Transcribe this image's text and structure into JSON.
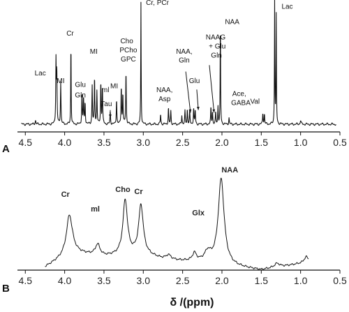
{
  "chart_data": [
    {
      "type": "line",
      "panel": "A",
      "xlabel": "",
      "xlim": [
        4.6,
        0.5
      ],
      "x_reversed": true,
      "xticks": [
        4.5,
        4.0,
        3.5,
        3.0,
        2.5,
        2.0,
        1.5,
        1.0,
        0.5
      ],
      "xtick_labels": [
        "4.5",
        "4.0",
        "3.5",
        "3.0",
        "2.5",
        "2.0",
        "1.5",
        "1.0",
        "0.5"
      ],
      "ylim": [
        0,
        1.0
      ],
      "grid": false,
      "series": [
        {
          "baseline": 0.06,
          "peaks": [
            {
              "ppm": 4.37,
              "height": 0.03,
              "width": 0.006
            },
            {
              "ppm": 4.11,
              "height": 0.49,
              "width": 0.004
            },
            {
              "ppm": 4.1,
              "height": 0.4,
              "width": 0.004
            },
            {
              "ppm": 4.05,
              "height": 0.33,
              "width": 0.004
            },
            {
              "ppm": 3.92,
              "height": 0.67,
              "width": 0.003
            },
            {
              "ppm": 3.78,
              "height": 0.24,
              "width": 0.004
            },
            {
              "ppm": 3.76,
              "height": 0.21,
              "width": 0.004
            },
            {
              "ppm": 3.74,
              "height": 0.17,
              "width": 0.004
            },
            {
              "ppm": 3.65,
              "height": 0.3,
              "width": 0.004
            },
            {
              "ppm": 3.62,
              "height": 0.37,
              "width": 0.004
            },
            {
              "ppm": 3.59,
              "height": 0.26,
              "width": 0.004
            },
            {
              "ppm": 3.54,
              "height": 0.33,
              "width": 0.004
            },
            {
              "ppm": 3.52,
              "height": 0.3,
              "width": 0.004
            },
            {
              "ppm": 3.42,
              "height": 0.1,
              "width": 0.004
            },
            {
              "ppm": 3.34,
              "height": 0.2,
              "width": 0.004
            },
            {
              "ppm": 3.28,
              "height": 0.3,
              "width": 0.004
            },
            {
              "ppm": 3.26,
              "height": 0.24,
              "width": 0.004
            },
            {
              "ppm": 3.22,
              "height": 0.42,
              "width": 0.004
            },
            {
              "ppm": 3.03,
              "height": 0.95,
              "width": 0.003
            },
            {
              "ppm": 2.78,
              "height": 0.08,
              "width": 0.004
            },
            {
              "ppm": 2.68,
              "height": 0.13,
              "width": 0.004
            },
            {
              "ppm": 2.65,
              "height": 0.1,
              "width": 0.004
            },
            {
              "ppm": 2.51,
              "height": 0.07,
              "width": 0.004
            },
            {
              "ppm": 2.47,
              "height": 0.1,
              "width": 0.004
            },
            {
              "ppm": 2.44,
              "height": 0.12,
              "width": 0.004
            },
            {
              "ppm": 2.41,
              "height": 0.1,
              "width": 0.004
            },
            {
              "ppm": 2.36,
              "height": 0.13,
              "width": 0.004
            },
            {
              "ppm": 2.34,
              "height": 0.11,
              "width": 0.004
            },
            {
              "ppm": 2.14,
              "height": 0.13,
              "width": 0.004
            },
            {
              "ppm": 2.12,
              "height": 0.1,
              "width": 0.004
            },
            {
              "ppm": 2.08,
              "height": 0.09,
              "width": 0.004
            },
            {
              "ppm": 2.05,
              "height": 0.14,
              "width": 0.004
            },
            {
              "ppm": 2.02,
              "height": 0.83,
              "width": 0.003
            },
            {
              "ppm": 1.91,
              "height": 0.05,
              "width": 0.004
            },
            {
              "ppm": 1.48,
              "height": 0.09,
              "width": 0.004
            },
            {
              "ppm": 1.46,
              "height": 0.08,
              "width": 0.004
            },
            {
              "ppm": 1.33,
              "height": 0.97,
              "width": 0.003
            },
            {
              "ppm": 1.31,
              "height": 0.84,
              "width": 0.003
            },
            {
              "ppm": 1.0,
              "height": 0.03,
              "width": 0.006
            }
          ]
        }
      ],
      "annotations": [
        {
          "text": "Cr, PCr",
          "ppm": 2.82,
          "y": 0.99
        },
        {
          "text": "Lac",
          "ppm": 1.17,
          "y": 0.96
        },
        {
          "text": "NAA",
          "ppm": 1.87,
          "y": 0.84
        },
        {
          "text": "Cr",
          "ppm": 3.93,
          "y": 0.75
        },
        {
          "text": "NAAG",
          "ppm": 2.08,
          "y": 0.72
        },
        {
          "text": "+ Glu",
          "ppm": 2.06,
          "y": 0.65
        },
        {
          "text": "Gln",
          "ppm": 2.07,
          "y": 0.58
        },
        {
          "text": "Cho",
          "ppm": 3.21,
          "y": 0.69
        },
        {
          "text": "PCho",
          "ppm": 3.19,
          "y": 0.62
        },
        {
          "text": "GPC",
          "ppm": 3.19,
          "y": 0.55
        },
        {
          "text": "MI",
          "ppm": 3.63,
          "y": 0.61
        },
        {
          "text": "Lac",
          "ppm": 4.31,
          "y": 0.44
        },
        {
          "text": "MI",
          "ppm": 4.05,
          "y": 0.38
        },
        {
          "text": "Glu",
          "ppm": 3.8,
          "y": 0.35
        },
        {
          "text": "Gln",
          "ppm": 3.8,
          "y": 0.27
        },
        {
          "text": "ml",
          "ppm": 3.48,
          "y": 0.31
        },
        {
          "text": "MI",
          "ppm": 3.37,
          "y": 0.34
        },
        {
          "text": "Tau",
          "ppm": 3.47,
          "y": 0.2
        },
        {
          "text": "NAA,",
          "ppm": 2.48,
          "y": 0.61
        },
        {
          "text": "Gln",
          "ppm": 2.48,
          "y": 0.54
        },
        {
          "text": "Glu",
          "ppm": 2.35,
          "y": 0.38
        },
        {
          "text": "NAA,",
          "ppm": 2.73,
          "y": 0.31
        },
        {
          "text": "Asp",
          "ppm": 2.73,
          "y": 0.24
        },
        {
          "text": "Ace,",
          "ppm": 1.78,
          "y": 0.28
        },
        {
          "text": "GABA",
          "ppm": 1.76,
          "y": 0.21
        },
        {
          "text": "Val",
          "ppm": 1.58,
          "y": 0.22
        }
      ],
      "arrows": [
        {
          "from": [
            2.46,
            0.47
          ],
          "to": [
            2.4,
            0.15
          ]
        },
        {
          "from": [
            2.32,
            0.33
          ],
          "to": [
            2.3,
            0.17
          ]
        },
        {
          "from": [
            2.16,
            0.52
          ],
          "to": [
            2.1,
            0.15
          ]
        },
        {
          "from": [
            3.42,
            0.17
          ],
          "to": [
            3.42,
            0.11
          ]
        }
      ]
    },
    {
      "type": "line",
      "panel": "B",
      "xlabel": "δ /(ppm)",
      "xlim": [
        4.6,
        0.5
      ],
      "x_reversed": true,
      "xticks": [
        4.5,
        4.0,
        3.5,
        3.0,
        2.5,
        2.0,
        1.5,
        1.0,
        0.5
      ],
      "xtick_labels": [
        "4.5",
        "4.0",
        "3.5",
        "3.0",
        "2.5",
        "2.0",
        "1.5",
        "1.0",
        "0.5"
      ],
      "ylim": [
        0,
        1.0
      ],
      "grid": false,
      "series": [
        {
          "range": [
            4.25,
            0.9
          ],
          "baseline_points": [
            [
              4.25,
              0.03
            ],
            [
              3.9,
              0.18
            ],
            [
              3.5,
              0.14
            ],
            [
              3.0,
              0.16
            ],
            [
              2.7,
              0.1
            ],
            [
              2.3,
              0.08
            ],
            [
              1.5,
              0.0
            ],
            [
              0.9,
              0.08
            ]
          ],
          "peaks": [
            {
              "ppm": 3.94,
              "height": 0.4,
              "width": 0.045
            },
            {
              "ppm": 3.58,
              "height": 0.11,
              "width": 0.035
            },
            {
              "ppm": 3.23,
              "height": 0.56,
              "width": 0.035
            },
            {
              "ppm": 3.03,
              "height": 0.5,
              "width": 0.035
            },
            {
              "ppm": 2.68,
              "height": 0.05,
              "width": 0.04
            },
            {
              "ppm": 2.35,
              "height": 0.08,
              "width": 0.03
            },
            {
              "ppm": 2.18,
              "height": 0.1,
              "width": 0.05
            },
            {
              "ppm": 2.01,
              "height": 0.88,
              "width": 0.045
            },
            {
              "ppm": 1.3,
              "height": 0.04,
              "width": 0.04
            },
            {
              "ppm": 0.93,
              "height": 0.06,
              "width": 0.03
            }
          ]
        }
      ],
      "annotations": [
        {
          "text": "NAA",
          "ppm": 1.9,
          "y": 1.0
        },
        {
          "text": "Cr",
          "ppm": 3.99,
          "y": 0.75
        },
        {
          "text": "ml",
          "ppm": 3.61,
          "y": 0.6
        },
        {
          "text": "Cho",
          "ppm": 3.26,
          "y": 0.8
        },
        {
          "text": "Cr",
          "ppm": 3.06,
          "y": 0.78
        },
        {
          "text": "Glx",
          "ppm": 2.3,
          "y": 0.56
        }
      ]
    }
  ],
  "panel_letters": {
    "a": "A",
    "b": "B"
  },
  "x_axis_title": "δ /(ppm)",
  "colors": {
    "line": "#111111",
    "background": "#ffffff"
  }
}
